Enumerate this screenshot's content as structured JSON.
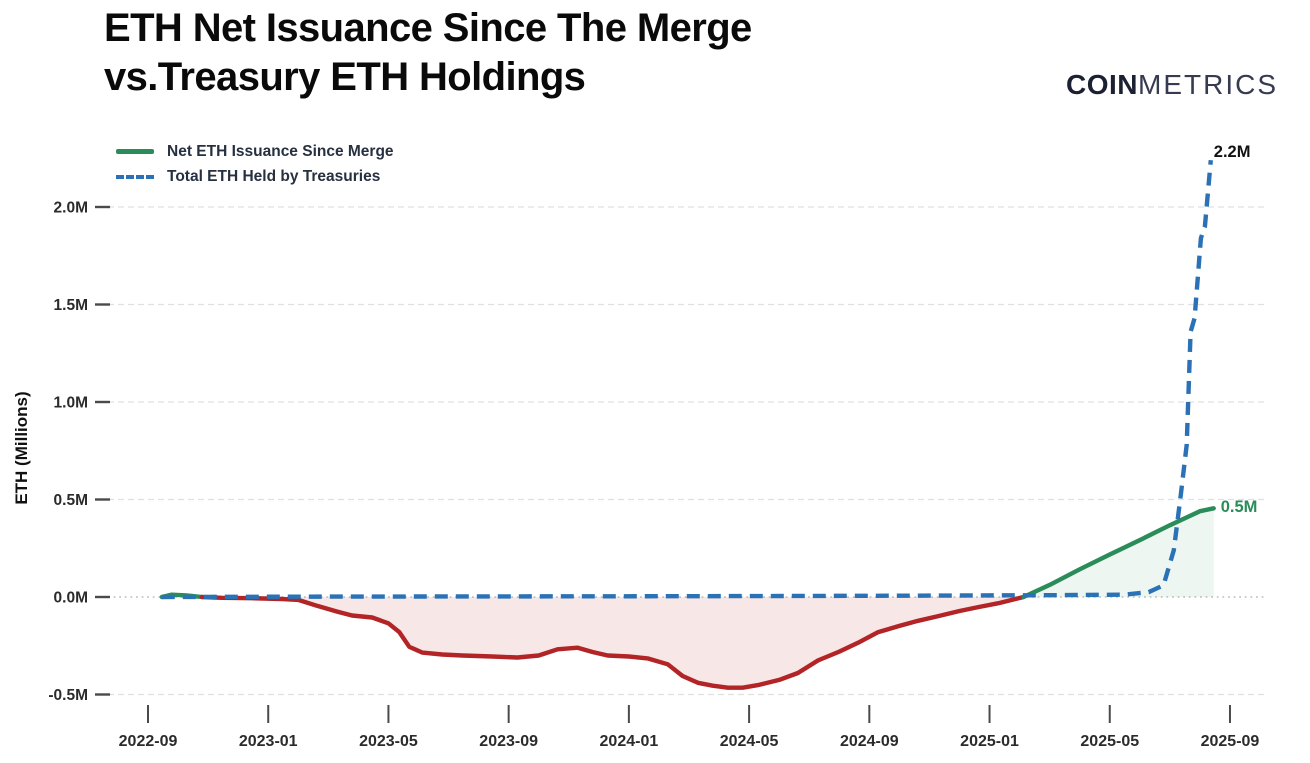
{
  "header": {
    "title_line1": "ETH Net Issuance Since The Merge",
    "title_line2": "vs.Treasury ETH Holdings",
    "logo_bold": "COIN",
    "logo_light": "METRICS"
  },
  "chart_data": {
    "type": "line",
    "title": "ETH Net Issuance Since The Merge vs.Treasury ETH Holdings",
    "xlabel": "",
    "ylabel": "ETH (Millions)",
    "legend_position": "top-left",
    "grid": "horizontal-dashed",
    "x_range": [
      "2022-09",
      "2025-09"
    ],
    "ylim": [
      -0.65,
      2.35
    ],
    "x_ticks": [
      "2022-09",
      "2023-01",
      "2023-05",
      "2023-09",
      "2024-01",
      "2024-05",
      "2024-09",
      "2025-01",
      "2025-05",
      "2025-09"
    ],
    "y_ticks": [
      {
        "label": "2.0M",
        "value": 2.0
      },
      {
        "label": "1.5M",
        "value": 1.5
      },
      {
        "label": "1.0M",
        "value": 1.0
      },
      {
        "label": "0.5M",
        "value": 0.5
      },
      {
        "label": "0.0M",
        "value": 0.0
      },
      {
        "label": "-0.5M",
        "value": -0.5
      }
    ],
    "annotations": {
      "treasury": "2.2M",
      "issuance": "0.5M"
    },
    "series": [
      {
        "name": "Net ETH Issuance Since Merge",
        "style": "solid",
        "color_positive": "#2a8c59",
        "color_negative": "#b22426",
        "fill_positive": "rgba(42,140,89,0.08)",
        "fill_negative": "rgba(178,36,38,0.11)",
        "unit": "millions of ETH",
        "points": [
          [
            "2022-09-15",
            0.0
          ],
          [
            "2022-09-25",
            0.012
          ],
          [
            "2022-10-10",
            0.008
          ],
          [
            "2022-10-25",
            0.0
          ],
          [
            "2022-11-15",
            -0.004
          ],
          [
            "2022-12-15",
            -0.006
          ],
          [
            "2023-01-15",
            -0.01
          ],
          [
            "2023-02-01",
            -0.015
          ],
          [
            "2023-02-20",
            -0.045
          ],
          [
            "2023-03-10",
            -0.075
          ],
          [
            "2023-03-25",
            -0.095
          ],
          [
            "2023-04-15",
            -0.105
          ],
          [
            "2023-05-01",
            -0.135
          ],
          [
            "2023-05-12",
            -0.18
          ],
          [
            "2023-05-22",
            -0.255
          ],
          [
            "2023-06-05",
            -0.285
          ],
          [
            "2023-06-25",
            -0.295
          ],
          [
            "2023-07-15",
            -0.3
          ],
          [
            "2023-08-15",
            -0.305
          ],
          [
            "2023-09-10",
            -0.31
          ],
          [
            "2023-10-01",
            -0.3
          ],
          [
            "2023-10-20",
            -0.268
          ],
          [
            "2023-11-10",
            -0.26
          ],
          [
            "2023-11-25",
            -0.282
          ],
          [
            "2023-12-10",
            -0.3
          ],
          [
            "2024-01-01",
            -0.305
          ],
          [
            "2024-01-20",
            -0.315
          ],
          [
            "2024-02-10",
            -0.345
          ],
          [
            "2024-02-25",
            -0.405
          ],
          [
            "2024-03-10",
            -0.44
          ],
          [
            "2024-03-25",
            -0.455
          ],
          [
            "2024-04-10",
            -0.465
          ],
          [
            "2024-04-25",
            -0.465
          ],
          [
            "2024-05-10",
            -0.452
          ],
          [
            "2024-06-01",
            -0.425
          ],
          [
            "2024-06-20",
            -0.39
          ],
          [
            "2024-07-10",
            -0.325
          ],
          [
            "2024-08-01",
            -0.28
          ],
          [
            "2024-08-20",
            -0.235
          ],
          [
            "2024-09-10",
            -0.18
          ],
          [
            "2024-10-01",
            -0.148
          ],
          [
            "2024-10-20",
            -0.122
          ],
          [
            "2024-11-10",
            -0.098
          ],
          [
            "2024-12-01",
            -0.072
          ],
          [
            "2024-12-20",
            -0.052
          ],
          [
            "2025-01-10",
            -0.032
          ],
          [
            "2025-02-05",
            0.0
          ],
          [
            "2025-03-01",
            0.062
          ],
          [
            "2025-04-01",
            0.142
          ],
          [
            "2025-05-01",
            0.218
          ],
          [
            "2025-06-01",
            0.292
          ],
          [
            "2025-07-01",
            0.368
          ],
          [
            "2025-08-01",
            0.44
          ],
          [
            "2025-08-15",
            0.455
          ]
        ]
      },
      {
        "name": "Total ETH Held by Treasuries",
        "style": "dashed",
        "color": "#2a72b5",
        "unit": "millions of ETH",
        "points": [
          [
            "2022-09-15",
            0.0
          ],
          [
            "2023-03-01",
            0.002
          ],
          [
            "2023-09-01",
            0.003
          ],
          [
            "2024-03-01",
            0.004
          ],
          [
            "2024-09-01",
            0.006
          ],
          [
            "2025-03-01",
            0.009
          ],
          [
            "2025-05-15",
            0.012
          ],
          [
            "2025-06-10",
            0.025
          ],
          [
            "2025-06-25",
            0.06
          ],
          [
            "2025-07-05",
            0.24
          ],
          [
            "2025-07-12",
            0.52
          ],
          [
            "2025-07-18",
            0.78
          ],
          [
            "2025-07-22",
            1.36
          ],
          [
            "2025-07-26",
            1.43
          ],
          [
            "2025-08-02",
            1.84
          ],
          [
            "2025-08-06",
            1.9
          ],
          [
            "2025-08-12",
            2.24
          ]
        ]
      }
    ]
  }
}
